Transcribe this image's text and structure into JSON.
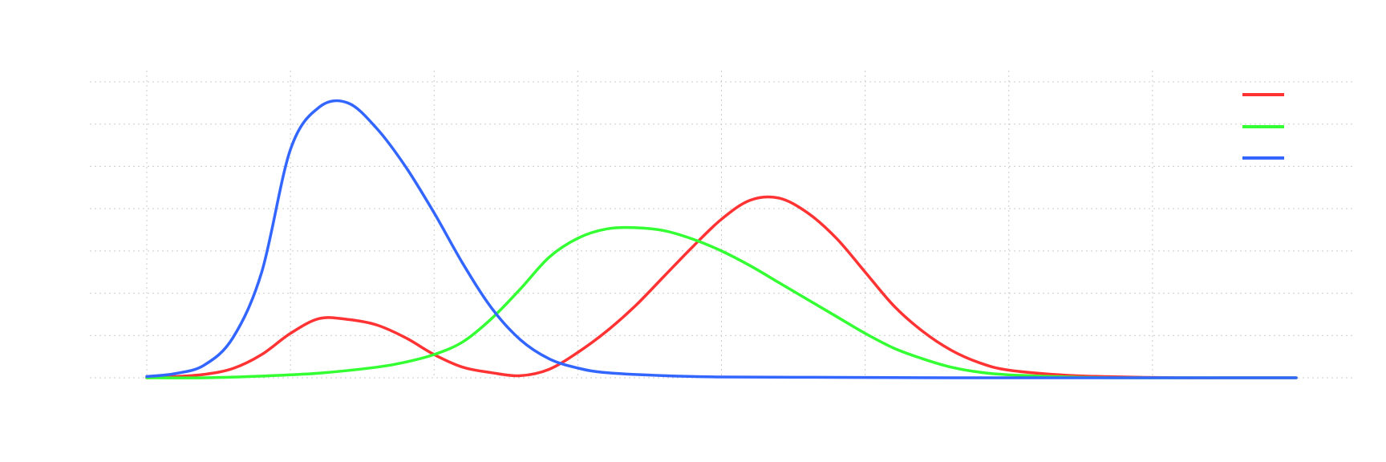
{
  "chart_data": {
    "type": "line",
    "title": "",
    "xlabel": "",
    "ylabel": "",
    "xlim": [
      -1,
      21
    ],
    "ylim": [
      0,
      0.7
    ],
    "x_gridlines": [
      0,
      2.5,
      5,
      7.5,
      10,
      12.5,
      15,
      17.5
    ],
    "y_gridlines": [
      0,
      0.1,
      0.2,
      0.3,
      0.4,
      0.5,
      0.6,
      0.7
    ],
    "grid": true,
    "legend_position": "top-right",
    "series": [
      {
        "color": "#ff3333",
        "x": [
          0,
          0.5,
          1,
          1.5,
          2,
          2.5,
          3,
          3.5,
          4,
          4.5,
          5,
          5.5,
          6,
          6.5,
          7,
          7.5,
          8,
          8.5,
          9,
          9.5,
          10,
          10.5,
          11,
          11.5,
          12,
          12.5,
          13,
          13.5,
          14,
          14.5,
          15,
          16,
          17,
          18,
          19,
          20
        ],
        "y": [
          0.0,
          0.003,
          0.008,
          0.022,
          0.055,
          0.105,
          0.14,
          0.138,
          0.125,
          0.095,
          0.055,
          0.025,
          0.012,
          0.005,
          0.02,
          0.06,
          0.11,
          0.17,
          0.24,
          0.31,
          0.375,
          0.42,
          0.425,
          0.39,
          0.33,
          0.25,
          0.17,
          0.11,
          0.065,
          0.035,
          0.018,
          0.006,
          0.002,
          0.0,
          0.0,
          0.0
        ]
      },
      {
        "color": "#33ff33",
        "x": [
          0,
          1,
          2,
          3,
          4,
          4.5,
          5,
          5.5,
          6,
          6.5,
          7,
          7.5,
          8,
          8.5,
          9,
          9.5,
          10,
          10.5,
          11,
          11.5,
          12,
          12.5,
          13,
          13.5,
          14,
          14.5,
          15,
          16,
          17,
          18,
          19,
          20
        ],
        "y": [
          0.0,
          0.0,
          0.004,
          0.011,
          0.025,
          0.037,
          0.055,
          0.085,
          0.14,
          0.21,
          0.285,
          0.33,
          0.352,
          0.355,
          0.348,
          0.328,
          0.3,
          0.265,
          0.225,
          0.185,
          0.145,
          0.105,
          0.07,
          0.045,
          0.025,
          0.013,
          0.007,
          0.002,
          0.0,
          0.0,
          0.0,
          0.0
        ]
      },
      {
        "color": "#3366ff",
        "x": [
          0,
          0.5,
          1,
          1.5,
          2,
          2.5,
          3,
          3.5,
          4,
          4.5,
          5,
          5.5,
          6,
          6.5,
          7,
          7.5,
          8,
          9,
          10,
          12,
          14,
          16,
          18,
          20
        ],
        "y": [
          0.003,
          0.01,
          0.03,
          0.095,
          0.25,
          0.54,
          0.64,
          0.65,
          0.59,
          0.5,
          0.39,
          0.27,
          0.165,
          0.09,
          0.045,
          0.023,
          0.012,
          0.005,
          0.002,
          0.001,
          0.0,
          0.0,
          0.0,
          0.0
        ]
      }
    ]
  }
}
